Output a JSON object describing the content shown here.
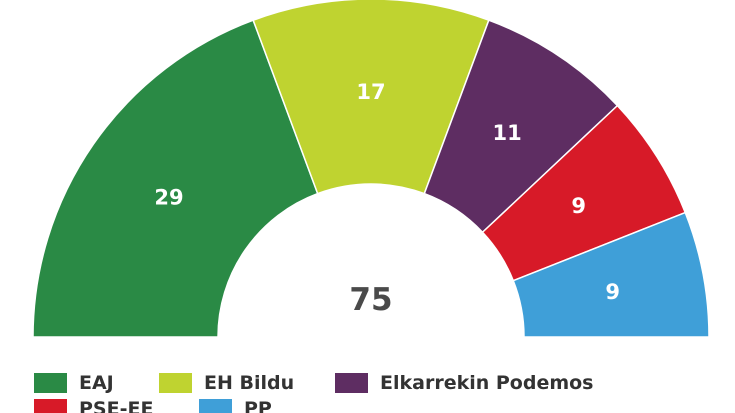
{
  "chart_data": {
    "type": "pie",
    "subtype": "parliament-half-donut",
    "total": "75",
    "slices": [
      {
        "name": "EAJ",
        "value": 29,
        "label": "29",
        "color": "#2a8a45"
      },
      {
        "name": "EH Bildu",
        "value": 17,
        "label": "17",
        "color": "#bfd330"
      },
      {
        "name": "Elkarrekin Podemos",
        "value": 11,
        "label": "11",
        "color": "#5e2d62"
      },
      {
        "name": "PSE-EE",
        "value": 9,
        "label": "9",
        "color": "#d71a28"
      },
      {
        "name": "PP",
        "value": 9,
        "label": "9",
        "color": "#3f9fd8"
      }
    ],
    "legend_position": "bottom-left"
  }
}
